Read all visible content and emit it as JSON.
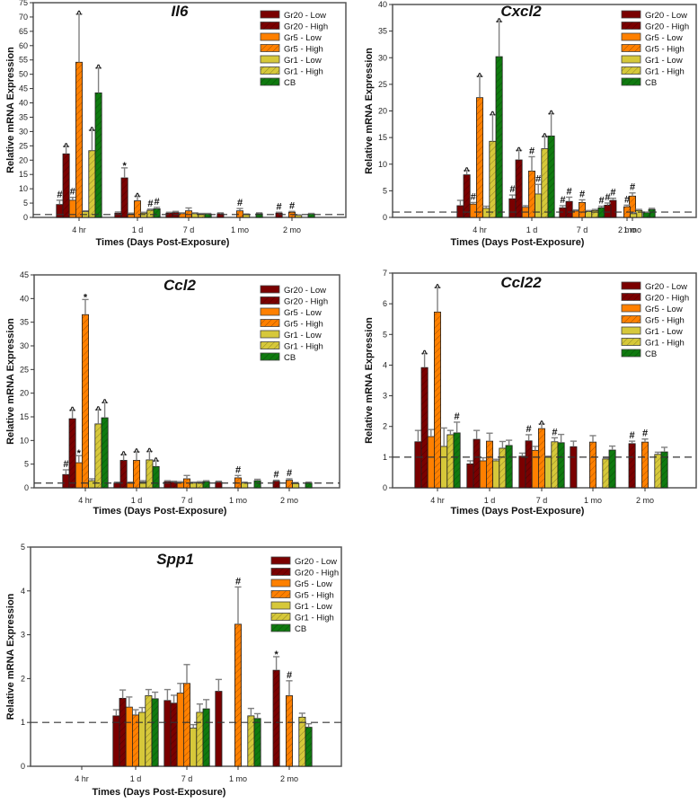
{
  "chart_data": [
    {
      "type": "bar",
      "title": "Il6",
      "xlabel": "Times (Days Post-Exposure)",
      "ylabel": "Relative mRNA Expression",
      "ylim": [
        0,
        75
      ],
      "yticks": [
        0,
        5,
        10,
        15,
        20,
        25,
        30,
        35,
        40,
        45,
        50,
        55,
        60,
        65,
        70,
        75
      ],
      "reference_line": 1,
      "categories": [
        "4 hr",
        "1 d",
        "7 d",
        "1 mo",
        "2 mo"
      ],
      "legend_position": "top-right",
      "series": [
        {
          "name": "Gr20 - Low",
          "values": [
            4.5,
            1.5,
            1.5,
            1.3,
            null
          ],
          "errors": [
            1.5,
            0.4,
            0.3,
            0.3,
            null
          ],
          "marks": [
            "#",
            "",
            "",
            "",
            ""
          ]
        },
        {
          "name": "Gr20 - High",
          "values": [
            22.2,
            13.8,
            1.7,
            null,
            1.5
          ],
          "errors": [
            2.6,
            3.5,
            0.4,
            null,
            0.3
          ],
          "marks": [
            "^",
            "*",
            "",
            "",
            "#"
          ]
        },
        {
          "name": "Gr5 - Low",
          "values": [
            6.0,
            1.2,
            1.3,
            null,
            null
          ],
          "errors": [
            1.0,
            0.3,
            0.3,
            null,
            null
          ],
          "marks": [
            "#",
            "",
            "",
            "",
            ""
          ]
        },
        {
          "name": "Gr5 - High",
          "values": [
            54.2,
            5.8,
            2.3,
            2.3,
            1.8
          ],
          "errors": [
            16.8,
            1.6,
            1.0,
            0.8,
            0.3
          ],
          "marks": [
            "^",
            "^",
            "",
            "#",
            "#"
          ]
        },
        {
          "name": "Gr1 - Low",
          "values": [
            2.0,
            1.5,
            1.3,
            1.0,
            0.7
          ],
          "errors": [
            0.3,
            0.3,
            0.3,
            0.2,
            0.2
          ],
          "marks": [
            "",
            "",
            "",
            "",
            ""
          ]
        },
        {
          "name": "Gr1 - High",
          "values": [
            23.3,
            2.5,
            1.2,
            null,
            null
          ],
          "errors": [
            7.2,
            0.4,
            0.2,
            null,
            null
          ],
          "marks": [
            "^",
            "#",
            "",
            "",
            ""
          ]
        },
        {
          "name": "CB",
          "values": [
            43.5,
            3.0,
            1.2,
            1.3,
            1.2
          ],
          "errors": [
            8.7,
            0.5,
            0.2,
            0.3,
            0.2
          ],
          "marks": [
            "^",
            "#",
            "",
            "",
            ""
          ]
        }
      ]
    },
    {
      "type": "bar",
      "title": "Cxcl2",
      "xlabel": "Times (Days Post-Exposure)",
      "ylabel": "Relative mRNA Expression",
      "ylim": [
        0,
        40
      ],
      "yticks": [
        0,
        5,
        10,
        15,
        20,
        25,
        30,
        35,
        40
      ],
      "reference_line": 1,
      "categories": [
        "4 hr",
        "1 d",
        "7 d",
        "1 mo",
        "2 mo"
      ],
      "legend_position": "top-right",
      "series": [
        {
          "name": "Gr20 - Low",
          "values": [
            2.2,
            3.5,
            1.8,
            3.2,
            2.3
          ],
          "errors": [
            1.0,
            0.7,
            0.4,
            0.4,
            0.4
          ],
          "marks": [
            "",
            "#",
            "#",
            "#",
            "#"
          ]
        },
        {
          "name": "Gr20 - High",
          "values": [
            8.0,
            10.8,
            3.0,
            null,
            null
          ],
          "errors": [
            0.8,
            1.8,
            0.8,
            null,
            null
          ],
          "marks": [
            "^",
            "^",
            "#",
            "",
            ""
          ]
        },
        {
          "name": "Gr5 - Low",
          "values": [
            2.5,
            1.9,
            1.2,
            null,
            null
          ],
          "errors": [
            0.3,
            0.3,
            0.2,
            null,
            null
          ],
          "marks": [
            "#",
            "",
            "",
            "",
            ""
          ]
        },
        {
          "name": "Gr5 - High",
          "values": [
            22.5,
            8.7,
            2.8,
            4.0,
            2.0
          ],
          "errors": [
            4.0,
            2.7,
            0.5,
            0.6,
            0.3
          ],
          "marks": [
            "^",
            "#",
            "#",
            "#",
            "#"
          ]
        },
        {
          "name": "Gr1 - Low",
          "values": [
            1.7,
            4.4,
            1.1,
            1.3,
            0.7
          ],
          "errors": [
            0.4,
            1.8,
            0.2,
            0.2,
            0.2
          ],
          "marks": [
            "",
            "#",
            "",
            "",
            ""
          ]
        },
        {
          "name": "Gr1 - High",
          "values": [
            14.3,
            12.9,
            1.3,
            null,
            null
          ],
          "errors": [
            5.0,
            2.3,
            0.2,
            null,
            null
          ],
          "marks": [
            "^",
            "^",
            "",
            "",
            ""
          ]
        },
        {
          "name": "CB",
          "values": [
            30.2,
            15.3,
            1.8,
            1.5,
            0.9
          ],
          "errors": [
            6.6,
            4.2,
            0.3,
            0.2,
            0.1
          ],
          "marks": [
            "^",
            "^",
            "#",
            "",
            ""
          ]
        }
      ]
    },
    {
      "type": "bar",
      "title": "Ccl2",
      "xlabel": "Times (Days Post-Exposure)",
      "ylabel": "Relative mRNA Expression",
      "ylim": [
        0,
        45
      ],
      "yticks": [
        0,
        5,
        10,
        15,
        20,
        25,
        30,
        35,
        40,
        45
      ],
      "reference_line": 1,
      "categories": [
        "4 hr",
        "1 d",
        "7 d",
        "1 mo",
        "2 mo"
      ],
      "legend_position": "top-right",
      "series": [
        {
          "name": "Gr20 - Low",
          "values": [
            2.8,
            1.0,
            1.3,
            1.2,
            null
          ],
          "errors": [
            1.0,
            0.2,
            0.2,
            0.2,
            null
          ],
          "marks": [
            "#",
            "",
            "",
            "",
            ""
          ]
        },
        {
          "name": "Gr20 - High",
          "values": [
            14.6,
            5.8,
            1.2,
            null,
            1.4
          ],
          "errors": [
            1.8,
            1.2,
            0.2,
            null,
            0.2
          ],
          "marks": [
            "^",
            "^",
            "",
            "",
            "#"
          ]
        },
        {
          "name": "Gr5 - Low",
          "values": [
            5.3,
            1.0,
            1.1,
            null,
            null
          ],
          "errors": [
            1.5,
            0.2,
            0.2,
            null,
            null
          ],
          "marks": [
            "*",
            "",
            "",
            "",
            ""
          ]
        },
        {
          "name": "Gr5 - High",
          "values": [
            36.6,
            5.8,
            1.9,
            2.1,
            1.6
          ],
          "errors": [
            3.2,
            1.8,
            0.7,
            0.5,
            0.3
          ],
          "marks": [
            "*",
            "^",
            "",
            "#",
            "#"
          ]
        },
        {
          "name": "Gr1 - Low",
          "values": [
            1.5,
            1.2,
            1.0,
            1.0,
            0.9
          ],
          "errors": [
            0.4,
            0.3,
            0.2,
            0.2,
            0.2
          ],
          "marks": [
            "",
            "",
            "",
            "",
            ""
          ]
        },
        {
          "name": "Gr1 - High",
          "values": [
            13.5,
            5.9,
            1.1,
            null,
            null
          ],
          "errors": [
            3.0,
            1.8,
            0.2,
            null,
            null
          ],
          "marks": [
            "^",
            "^",
            "",
            "",
            ""
          ]
        },
        {
          "name": "CB",
          "values": [
            14.8,
            4.5,
            1.3,
            1.5,
            1.0
          ],
          "errors": [
            3.2,
            1.2,
            0.2,
            0.3,
            0.2
          ],
          "marks": [
            "^",
            "^",
            "",
            "",
            ""
          ]
        }
      ]
    },
    {
      "type": "bar",
      "title": "Ccl22",
      "xlabel": "Times (Days Post-Exposure)",
      "ylabel": "Relative mRNA Expression",
      "ylim": [
        0,
        7
      ],
      "yticks": [
        0,
        1,
        2,
        3,
        4,
        5,
        6,
        7
      ],
      "reference_line": 1,
      "categories": [
        "4 hr",
        "1 d",
        "7 d",
        "1 mo",
        "2 mo"
      ],
      "legend_position": "top-right",
      "series": [
        {
          "name": "Gr20 - Low",
          "values": [
            1.5,
            0.78,
            1.03,
            1.34,
            null
          ],
          "errors": [
            0.37,
            0.1,
            0.1,
            0.18,
            null
          ],
          "marks": [
            "",
            "",
            "",
            "",
            ""
          ]
        },
        {
          "name": "Gr20 - High",
          "values": [
            3.92,
            1.58,
            1.53,
            null,
            1.44
          ],
          "errors": [
            0.46,
            0.29,
            0.2,
            null,
            0.08
          ],
          "marks": [
            "^",
            "",
            "#",
            "",
            "#"
          ]
        },
        {
          "name": "Gr5 - Low",
          "values": [
            1.67,
            0.88,
            1.22,
            null,
            null
          ],
          "errors": [
            0.23,
            0.1,
            0.13,
            null,
            null
          ],
          "marks": [
            "",
            "",
            "",
            "",
            ""
          ]
        },
        {
          "name": "Gr5 - High",
          "values": [
            5.73,
            1.52,
            1.93,
            1.49,
            1.49
          ],
          "errors": [
            0.8,
            0.26,
            0.15,
            0.21,
            0.1
          ],
          "marks": [
            "^",
            "",
            "^",
            "",
            "#"
          ]
        },
        {
          "name": "Gr1 - Low",
          "values": [
            1.35,
            0.88,
            1.01,
            null,
            null
          ],
          "errors": [
            0.6,
            0.05,
            0.02,
            null,
            null
          ],
          "marks": [
            "",
            "",
            "",
            "",
            ""
          ]
        },
        {
          "name": "Gr1 - High",
          "values": [
            1.73,
            1.29,
            1.5,
            0.94,
            1.09
          ],
          "errors": [
            0.14,
            0.22,
            0.13,
            0.02,
            0.07
          ],
          "marks": [
            "",
            "",
            "#",
            "",
            ""
          ]
        },
        {
          "name": "CB",
          "values": [
            1.79,
            1.38,
            1.47,
            1.23,
            1.17
          ],
          "errors": [
            0.35,
            0.17,
            0.27,
            0.13,
            0.15
          ],
          "marks": [
            "#",
            "",
            "",
            "",
            ""
          ]
        }
      ]
    },
    {
      "type": "bar",
      "title": "Spp1",
      "xlabel": "Times (Days Post-Exposure)",
      "ylabel": "Relative mRNA Expression",
      "ylim": [
        0,
        5
      ],
      "yticks": [
        0,
        1,
        2,
        3,
        4,
        5
      ],
      "reference_line": 1,
      "categories": [
        "4 hr",
        "1 d",
        "7 d",
        "1 mo",
        "2 mo"
      ],
      "legend_position": "top-right",
      "series": [
        {
          "name": "Gr20 - Low",
          "values": [
            null,
            1.15,
            1.5,
            1.71,
            null
          ],
          "errors": [
            null,
            0.14,
            0.25,
            0.27,
            null
          ],
          "marks": [
            "",
            "",
            "",
            "",
            ""
          ]
        },
        {
          "name": "Gr20 - High",
          "values": [
            null,
            1.55,
            1.44,
            null,
            2.19
          ],
          "errors": [
            null,
            0.19,
            0.18,
            null,
            0.31
          ],
          "marks": [
            "",
            "",
            "",
            "",
            "*"
          ]
        },
        {
          "name": "Gr5 - Low",
          "values": [
            null,
            1.35,
            1.67,
            null,
            null
          ],
          "errors": [
            null,
            0.23,
            0.22,
            null,
            null
          ],
          "marks": [
            "",
            "",
            "",
            "",
            ""
          ]
        },
        {
          "name": "Gr5 - High",
          "values": [
            null,
            1.17,
            1.89,
            3.24,
            1.61
          ],
          "errors": [
            null,
            0.12,
            0.43,
            0.85,
            0.34
          ],
          "marks": [
            "",
            "",
            "",
            "#",
            "#"
          ]
        },
        {
          "name": "Gr1 - Low",
          "values": [
            null,
            1.23,
            0.87,
            null,
            null
          ],
          "errors": [
            null,
            0.11,
            0.08,
            null,
            null
          ],
          "marks": [
            "",
            "",
            "",
            "",
            ""
          ]
        },
        {
          "name": "Gr1 - High",
          "values": [
            null,
            1.61,
            1.23,
            1.15,
            1.12
          ],
          "errors": [
            null,
            0.14,
            0.19,
            0.17,
            0.09
          ],
          "marks": [
            "",
            "",
            "",
            "",
            ""
          ]
        },
        {
          "name": "CB",
          "values": [
            null,
            1.54,
            1.31,
            1.09,
            0.89
          ],
          "errors": [
            null,
            0.15,
            0.21,
            0.11,
            0.08
          ],
          "marks": [
            "",
            "",
            "",
            "",
            ""
          ]
        }
      ]
    }
  ],
  "style": {
    "series_colors": [
      "#7a0000",
      "#7a0000",
      "#ff8000",
      "#ff8000",
      "#d6c83a",
      "#d6c83a",
      "#0f7a0f"
    ],
    "series_hatched": [
      false,
      true,
      false,
      true,
      false,
      true,
      true
    ],
    "error_bar_color": "#808080",
    "reference_line_color": "#333333"
  }
}
